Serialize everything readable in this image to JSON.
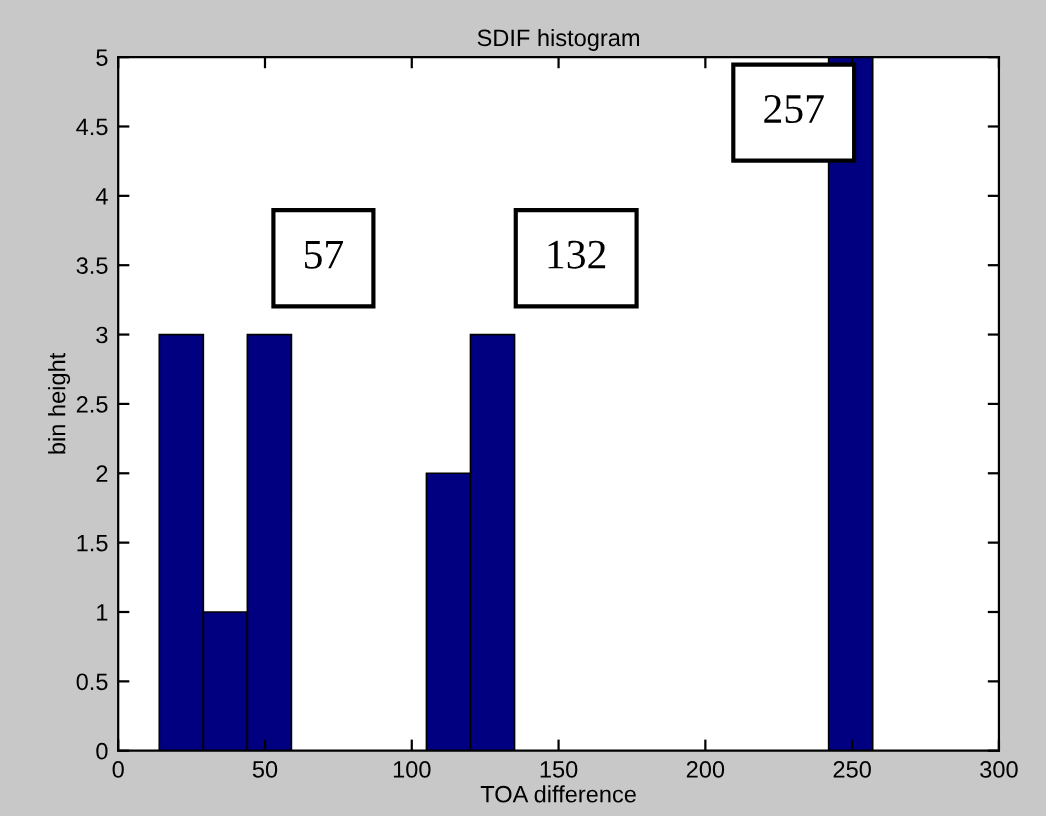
{
  "chart_data": {
    "type": "histogram",
    "title": "SDIF histogram",
    "xlabel": "TOA difference",
    "ylabel": "bin height",
    "bins": [
      14,
      29,
      44,
      59,
      105,
      120,
      135,
      242,
      257
    ],
    "values": [
      3,
      1,
      3,
      0,
      2,
      3,
      0,
      5
    ],
    "color": "#000080",
    "xlim": [
      0,
      300
    ],
    "xticks": [
      0,
      50,
      100,
      150,
      200,
      250,
      300
    ],
    "ylim": [
      0,
      5
    ],
    "yticks": [
      0,
      0.5,
      1,
      1.5,
      2,
      2.5,
      3,
      3.5,
      4,
      4.5,
      5
    ],
    "grid": false,
    "legend": false,
    "annotations": [
      "57",
      "132",
      "257"
    ]
  }
}
